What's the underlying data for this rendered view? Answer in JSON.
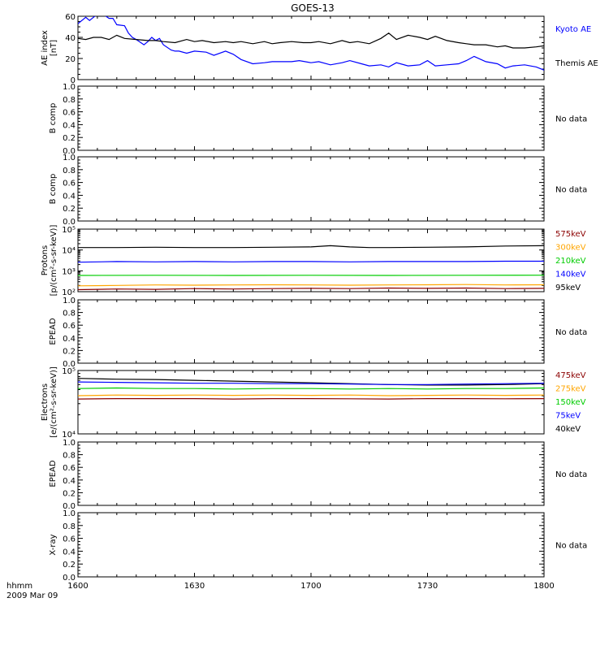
{
  "title": "GOES-13",
  "colors": {
    "black": "#000000",
    "blue": "#0000ff",
    "green": "#00cc00",
    "orange": "#ffa500",
    "darkred": "#8b0000"
  },
  "chart_data": [
    {
      "type": "line",
      "id": "ae",
      "ylabel": [
        "AE index",
        "[nT]"
      ],
      "ylim": [
        0,
        60
      ],
      "yticks": [
        "0",
        "20",
        "40",
        "60"
      ],
      "legend": [
        {
          "name": "Kyoto AE",
          "color": "#0000ff"
        },
        {
          "name": "Themis AE",
          "color": "#000000"
        }
      ],
      "series": [
        {
          "name": "Kyoto AE",
          "color": "#0000ff",
          "t": [
            0,
            2,
            3,
            4,
            5,
            6,
            8,
            9,
            10,
            12,
            13,
            14,
            15,
            17,
            18,
            19,
            20,
            21,
            22,
            24,
            25,
            26,
            28,
            30,
            33,
            35,
            38,
            40,
            42,
            45,
            48,
            50,
            52,
            55,
            57,
            60,
            62,
            65,
            68,
            70,
            73,
            75,
            78,
            80,
            82,
            85,
            88,
            90,
            92,
            95,
            98,
            100,
            102,
            105,
            108,
            110,
            112,
            115,
            118,
            120
          ],
          "v": [
            53,
            59,
            56,
            59,
            62,
            63,
            58,
            58,
            52,
            51,
            44,
            40,
            38,
            33,
            36,
            40,
            37,
            39,
            33,
            28,
            27,
            27,
            25,
            27,
            26,
            23,
            27,
            24,
            19,
            15,
            16,
            17,
            17,
            17,
            18,
            16,
            17,
            14,
            16,
            18,
            15,
            13,
            14,
            12,
            16,
            13,
            14,
            18,
            13,
            14,
            15,
            18,
            22,
            17,
            15,
            11,
            13,
            14,
            12,
            9
          ]
        },
        {
          "name": "Themis AE",
          "color": "#000000",
          "t": [
            0,
            2,
            4,
            6,
            8,
            10,
            12,
            15,
            18,
            20,
            22,
            25,
            28,
            30,
            32,
            35,
            38,
            40,
            42,
            45,
            48,
            50,
            52,
            55,
            58,
            60,
            62,
            65,
            68,
            70,
            72,
            75,
            78,
            80,
            82,
            85,
            88,
            90,
            92,
            95,
            98,
            100,
            102,
            105,
            108,
            110,
            112,
            115,
            118,
            120
          ],
          "v": [
            39,
            38,
            40,
            40,
            38,
            42,
            39,
            38,
            37,
            37,
            36,
            35,
            38,
            36,
            37,
            35,
            36,
            35,
            36,
            34,
            36,
            34,
            35,
            36,
            35,
            35,
            36,
            34,
            37,
            35,
            36,
            34,
            39,
            44,
            38,
            42,
            40,
            38,
            41,
            37,
            35,
            34,
            33,
            33,
            31,
            32,
            30,
            30,
            31,
            32
          ]
        }
      ]
    },
    {
      "type": "line",
      "id": "bcomp1",
      "ylabel": [
        "B comp"
      ],
      "ylim": [
        0,
        1
      ],
      "yticks": [
        "0.0",
        "0.2",
        "0.4",
        "0.6",
        "0.8",
        "1.0"
      ],
      "legend": [
        {
          "name": "No data",
          "color": "#000000"
        }
      ],
      "series": []
    },
    {
      "type": "line",
      "id": "bcomp2",
      "ylabel": [
        "B comp"
      ],
      "ylim": [
        0,
        1
      ],
      "yticks": [
        "0.0",
        "0.2",
        "0.4",
        "0.6",
        "0.8",
        "1.0"
      ],
      "legend": [
        {
          "name": "No data",
          "color": "#000000"
        }
      ],
      "series": []
    },
    {
      "type": "line",
      "id": "protons",
      "scale": "log",
      "ylabel": [
        "Protons",
        "[p/(cm²-s-sr-keV)]"
      ],
      "ylim": [
        100,
        100000
      ],
      "yticks": [
        "10²",
        "10³",
        "10⁴",
        "10⁵"
      ],
      "legend": [
        {
          "name": "575keV",
          "color": "#8b0000"
        },
        {
          "name": "300keV",
          "color": "#ffa500"
        },
        {
          "name": "210keV",
          "color": "#00cc00"
        },
        {
          "name": "140keV",
          "color": "#0000ff"
        },
        {
          "name": "95keV",
          "color": "#000000"
        }
      ],
      "series": [
        {
          "name": "95keV",
          "color": "#000000",
          "t": [
            0,
            10,
            20,
            30,
            40,
            50,
            60,
            65,
            70,
            75,
            80,
            90,
            100,
            110,
            120
          ],
          "v": [
            13000,
            13000,
            13500,
            13000,
            13000,
            13500,
            14000,
            16000,
            14000,
            13000,
            13000,
            13500,
            14000,
            15500,
            16000
          ]
        },
        {
          "name": "140keV",
          "color": "#0000ff",
          "t": [
            0,
            10,
            20,
            30,
            40,
            50,
            60,
            70,
            80,
            90,
            100,
            110,
            120
          ],
          "v": [
            2600,
            2800,
            2700,
            2800,
            2700,
            2800,
            2800,
            2700,
            2800,
            2800,
            2800,
            2900,
            2900
          ]
        },
        {
          "name": "210keV",
          "color": "#00cc00",
          "t": [
            0,
            20,
            40,
            60,
            80,
            100,
            120
          ],
          "v": [
            600,
            610,
            600,
            610,
            600,
            610,
            620
          ]
        },
        {
          "name": "300keV",
          "color": "#ffa500",
          "t": [
            0,
            10,
            20,
            30,
            40,
            50,
            60,
            70,
            80,
            90,
            100,
            110,
            120
          ],
          "v": [
            190,
            200,
            210,
            205,
            210,
            215,
            210,
            205,
            210,
            215,
            220,
            210,
            215
          ]
        },
        {
          "name": "575keV",
          "color": "#8b0000",
          "t": [
            0,
            10,
            20,
            30,
            40,
            50,
            60,
            70,
            80,
            90,
            100,
            110,
            120
          ],
          "v": [
            125,
            135,
            130,
            140,
            135,
            140,
            145,
            140,
            150,
            145,
            150,
            140,
            145
          ]
        }
      ]
    },
    {
      "type": "line",
      "id": "epead1",
      "ylabel": [
        "EPEAD"
      ],
      "ylim": [
        0,
        1
      ],
      "yticks": [
        "0.0",
        "0.2",
        "0.4",
        "0.6",
        "0.8",
        "1.0"
      ],
      "legend": [
        {
          "name": "No data",
          "color": "#000000"
        }
      ],
      "series": []
    },
    {
      "type": "line",
      "id": "electrons",
      "scale": "log",
      "ylabel": [
        "Electrons",
        "[e/(cm²-s-sr-keV)]"
      ],
      "ylim": [
        10000,
        100000
      ],
      "yticks": [
        "10⁴",
        "10⁵"
      ],
      "legend": [
        {
          "name": "475keV",
          "color": "#8b0000"
        },
        {
          "name": "275keV",
          "color": "#ffa500"
        },
        {
          "name": "150keV",
          "color": "#00cc00"
        },
        {
          "name": "75keV",
          "color": "#0000ff"
        },
        {
          "name": "40keV",
          "color": "#000000"
        }
      ],
      "series": [
        {
          "name": "40keV",
          "color": "#000000",
          "t": [
            0,
            10,
            20,
            30,
            40,
            50,
            60,
            70,
            80,
            90,
            100,
            110,
            120
          ],
          "v": [
            75000,
            73000,
            72000,
            70000,
            68000,
            66000,
            64000,
            62000,
            60000,
            59000,
            59000,
            60000,
            62000
          ]
        },
        {
          "name": "75keV",
          "color": "#0000ff",
          "t": [
            0,
            10,
            20,
            30,
            40,
            50,
            60,
            70,
            80,
            90,
            100,
            110,
            120
          ],
          "v": [
            66000,
            65000,
            64000,
            63000,
            63000,
            62000,
            62000,
            61000,
            60000,
            60000,
            61000,
            62000,
            63000
          ]
        },
        {
          "name": "150keV",
          "color": "#00cc00",
          "t": [
            0,
            10,
            20,
            30,
            40,
            50,
            60,
            70,
            80,
            90,
            100,
            110,
            120
          ],
          "v": [
            52000,
            53000,
            52000,
            52000,
            51000,
            52000,
            52000,
            51000,
            52000,
            51000,
            52000,
            52000,
            53000
          ]
        },
        {
          "name": "275keV",
          "color": "#ffa500",
          "t": [
            0,
            10,
            20,
            30,
            40,
            50,
            60,
            70,
            80,
            90,
            100,
            110,
            120
          ],
          "v": [
            40000,
            41000,
            40500,
            41000,
            40500,
            41000,
            40500,
            41000,
            40000,
            40500,
            41000,
            40500,
            41000
          ]
        },
        {
          "name": "475keV",
          "color": "#8b0000",
          "t": [
            0,
            10,
            20,
            30,
            40,
            50,
            60,
            70,
            80,
            90,
            100,
            110,
            120
          ],
          "v": [
            35500,
            36000,
            36000,
            36000,
            35500,
            36000,
            36000,
            35800,
            35500,
            36000,
            36000,
            35800,
            36000
          ]
        }
      ]
    },
    {
      "type": "line",
      "id": "epead2",
      "ylabel": [
        "EPEAD"
      ],
      "ylim": [
        0,
        1
      ],
      "yticks": [
        "0.0",
        "0.2",
        "0.4",
        "0.6",
        "0.8",
        "1.0"
      ],
      "legend": [
        {
          "name": "No data",
          "color": "#000000"
        }
      ],
      "series": []
    },
    {
      "type": "line",
      "id": "xray",
      "ylabel": [
        "X-ray"
      ],
      "ylim": [
        0,
        1
      ],
      "yticks": [
        "0.0",
        "0.2",
        "0.4",
        "0.6",
        "0.8",
        "1.0"
      ],
      "legend": [
        {
          "name": "No data",
          "color": "#000000"
        }
      ],
      "series": []
    }
  ],
  "xaxis": {
    "ticks": [
      "1600",
      "1630",
      "1700",
      "1730",
      "1800"
    ],
    "tick_minutes": [
      0,
      30,
      60,
      90,
      120
    ],
    "range_minutes": [
      0,
      120
    ],
    "label_top": "hhmm",
    "label_bottom": "2009 Mar 09"
  }
}
